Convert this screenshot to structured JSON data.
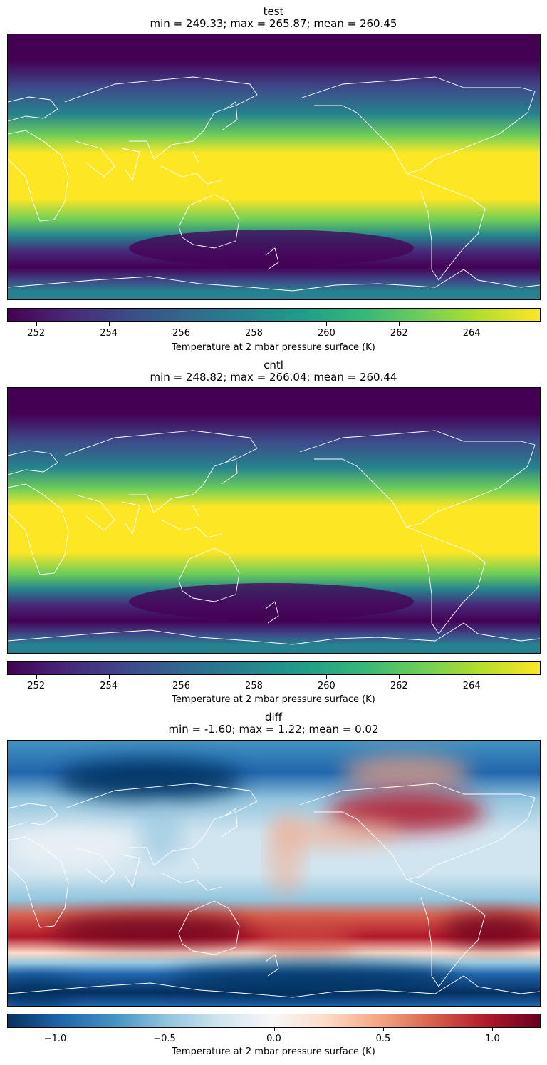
{
  "panels": [
    {
      "name": "test",
      "stats": "min = 249.33; max = 265.87; mean = 260.45",
      "colormap": "viridis",
      "colorbar": {
        "vmin": 251.2,
        "vmax": 265.9,
        "ticks": [
          "252",
          "254",
          "256",
          "258",
          "260",
          "262",
          "264"
        ],
        "tick_values": [
          252,
          254,
          256,
          258,
          260,
          262,
          264
        ],
        "label": "Temperature at 2 mbar pressure surface (K)"
      }
    },
    {
      "name": "cntl",
      "stats": "min = 248.82; max = 266.04; mean = 260.44",
      "colormap": "viridis",
      "colorbar": {
        "vmin": 251.2,
        "vmax": 265.9,
        "ticks": [
          "252",
          "254",
          "256",
          "258",
          "260",
          "262",
          "264"
        ],
        "tick_values": [
          252,
          254,
          256,
          258,
          260,
          262,
          264
        ],
        "label": "Temperature at 2 mbar pressure surface (K)"
      }
    },
    {
      "name": "diff",
      "stats": "min = -1.60; max = 1.22; mean = 0.02",
      "colormap": "RdBu_r",
      "colorbar": {
        "vmin": -1.22,
        "vmax": 1.22,
        "ticks": [
          "−1.0",
          "−0.5",
          "0.0",
          "0.5",
          "1.0"
        ],
        "tick_values": [
          -1.0,
          -0.5,
          0.0,
          0.5,
          1.0
        ],
        "label": "Temperature at 2 mbar pressure surface (K)"
      }
    }
  ],
  "colors": {
    "viridis": [
      "#440154",
      "#482878",
      "#3e4989",
      "#31688e",
      "#26828e",
      "#1f9e89",
      "#35b779",
      "#6ece58",
      "#b5de2b",
      "#fde725"
    ],
    "rdbu_r": [
      "#053061",
      "#2166ac",
      "#4393c3",
      "#92c5de",
      "#d1e5f0",
      "#f7f7f7",
      "#fddbc7",
      "#f4a582",
      "#d6604d",
      "#b2182b",
      "#67001f"
    ],
    "coast": "#ffffff"
  }
}
